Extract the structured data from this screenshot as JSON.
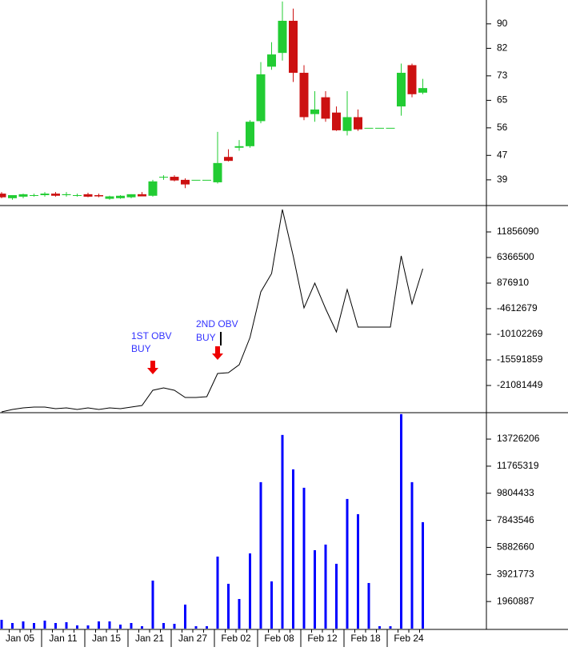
{
  "chart_data": [
    {
      "type": "candlestick",
      "categories": [
        "Jan 05",
        null,
        null,
        null,
        "Jan 11",
        null,
        null,
        null,
        "Jan 15",
        null,
        null,
        null,
        "Jan 21",
        null,
        null,
        null,
        "Jan 27",
        null,
        null,
        null,
        "Feb 02",
        null,
        null,
        null,
        "Feb 08",
        null,
        null,
        null,
        "Feb 12",
        null,
        null,
        null,
        "Feb 18",
        null,
        null,
        null,
        "Feb 24",
        null,
        null,
        null
      ],
      "open": [
        34.5,
        33,
        33.5,
        34,
        34,
        34.5,
        34,
        34,
        34.3,
        34,
        32.8,
        33,
        33.3,
        34.3,
        33.8,
        40,
        40,
        39,
        39,
        39,
        38.2,
        46.5,
        49.5,
        50,
        58.2,
        76,
        80.5,
        91,
        74,
        60.5,
        66,
        61,
        55,
        59.5,
        56,
        56,
        56,
        63,
        76.5,
        67.5
      ],
      "high": [
        35,
        34,
        34.5,
        34.5,
        35,
        35,
        35,
        34.5,
        34.8,
        34.5,
        33.8,
        34,
        34.3,
        35,
        39,
        40.5,
        40.5,
        39.5,
        39,
        39,
        54.7,
        49,
        52,
        58.5,
        77.5,
        84,
        97.3,
        95,
        76.5,
        68,
        68,
        63,
        68,
        62,
        56,
        56,
        56,
        77,
        77,
        72
      ],
      "low": [
        33,
        32.5,
        33,
        33.5,
        33.5,
        33.5,
        33.5,
        33.5,
        33.3,
        33.3,
        32.5,
        32.8,
        33,
        33.8,
        33.5,
        39,
        38.5,
        36.3,
        39,
        39,
        37.8,
        45,
        48.5,
        49.5,
        57.5,
        75,
        78,
        71,
        58.5,
        58,
        58,
        55,
        53.5,
        55,
        56,
        56,
        56,
        60,
        66,
        67
      ],
      "close": [
        33.3,
        34,
        34.3,
        34,
        34.5,
        33.8,
        34.3,
        34,
        33.5,
        33.6,
        33.6,
        33.8,
        34.3,
        33.6,
        38.5,
        40,
        38.8,
        37.5,
        39,
        39,
        44.5,
        45.2,
        50,
        58,
        73.5,
        80,
        91,
        74,
        59.5,
        62,
        59,
        55.2,
        59.5,
        55.5,
        56,
        56,
        56,
        74,
        67,
        69
      ],
      "ylim": [
        30.6,
        97.8
      ],
      "yticks": [
        39,
        47,
        56,
        65,
        73,
        82,
        90
      ],
      "up_color": "#22cc33",
      "down_color": "#cc1111"
    },
    {
      "type": "line",
      "values": [
        -26742660,
        -26228010,
        -25884910,
        -25713360,
        -25713360,
        -26056460,
        -25884910,
        -26228010,
        -25884910,
        -26228010,
        -25884910,
        -26056460,
        -25713360,
        -25370260,
        -22110810,
        -21596160,
        -22110810,
        -23654760,
        -23654760,
        -23483210,
        -18508260,
        -18336710,
        -16621210,
        -10788510,
        -1010160,
        2935490,
        16659490,
        6709590,
        -4441160,
        876890,
        -4612710,
        -9587660,
        -495510,
        -8558360,
        -8558360,
        -8558360,
        -8558360,
        6709590,
        -3583410,
        3964790
      ],
      "color": "#000000",
      "ylim": [
        -26914149,
        17517240
      ],
      "yticks": [
        11856090,
        6366500,
        876910,
        -4612679,
        -10102269,
        -15591859,
        -21081449
      ],
      "annotations": [
        {
          "lines": [
            "1ST OBV",
            "BUY"
          ]
        },
        {
          "lines": [
            "2ND OBV",
            "BUY"
          ]
        }
      ]
    },
    {
      "type": "bar",
      "values": [
        637593,
        405741,
        521667,
        405741,
        579630,
        405741,
        463704,
        231852,
        231852,
        521667,
        521667,
        289815,
        405741,
        173889,
        3477780,
        405741,
        347778,
        1738890,
        173889,
        173889,
        5216670,
        3245928,
        2144631,
        5448522,
        10607229,
        3419817,
        14027046,
        11534637,
        10201488,
        5680374,
        6086115,
        4695003,
        9390006,
        8288709,
        3303891,
        173889,
        173889,
        15534084,
        10607229,
        7709079
      ],
      "color": "#0000ff",
      "ylim": [
        0,
        15640000
      ],
      "yticks": [
        13726206,
        11765319,
        9804433,
        7843546,
        5882660,
        3921773,
        1960887
      ]
    }
  ]
}
